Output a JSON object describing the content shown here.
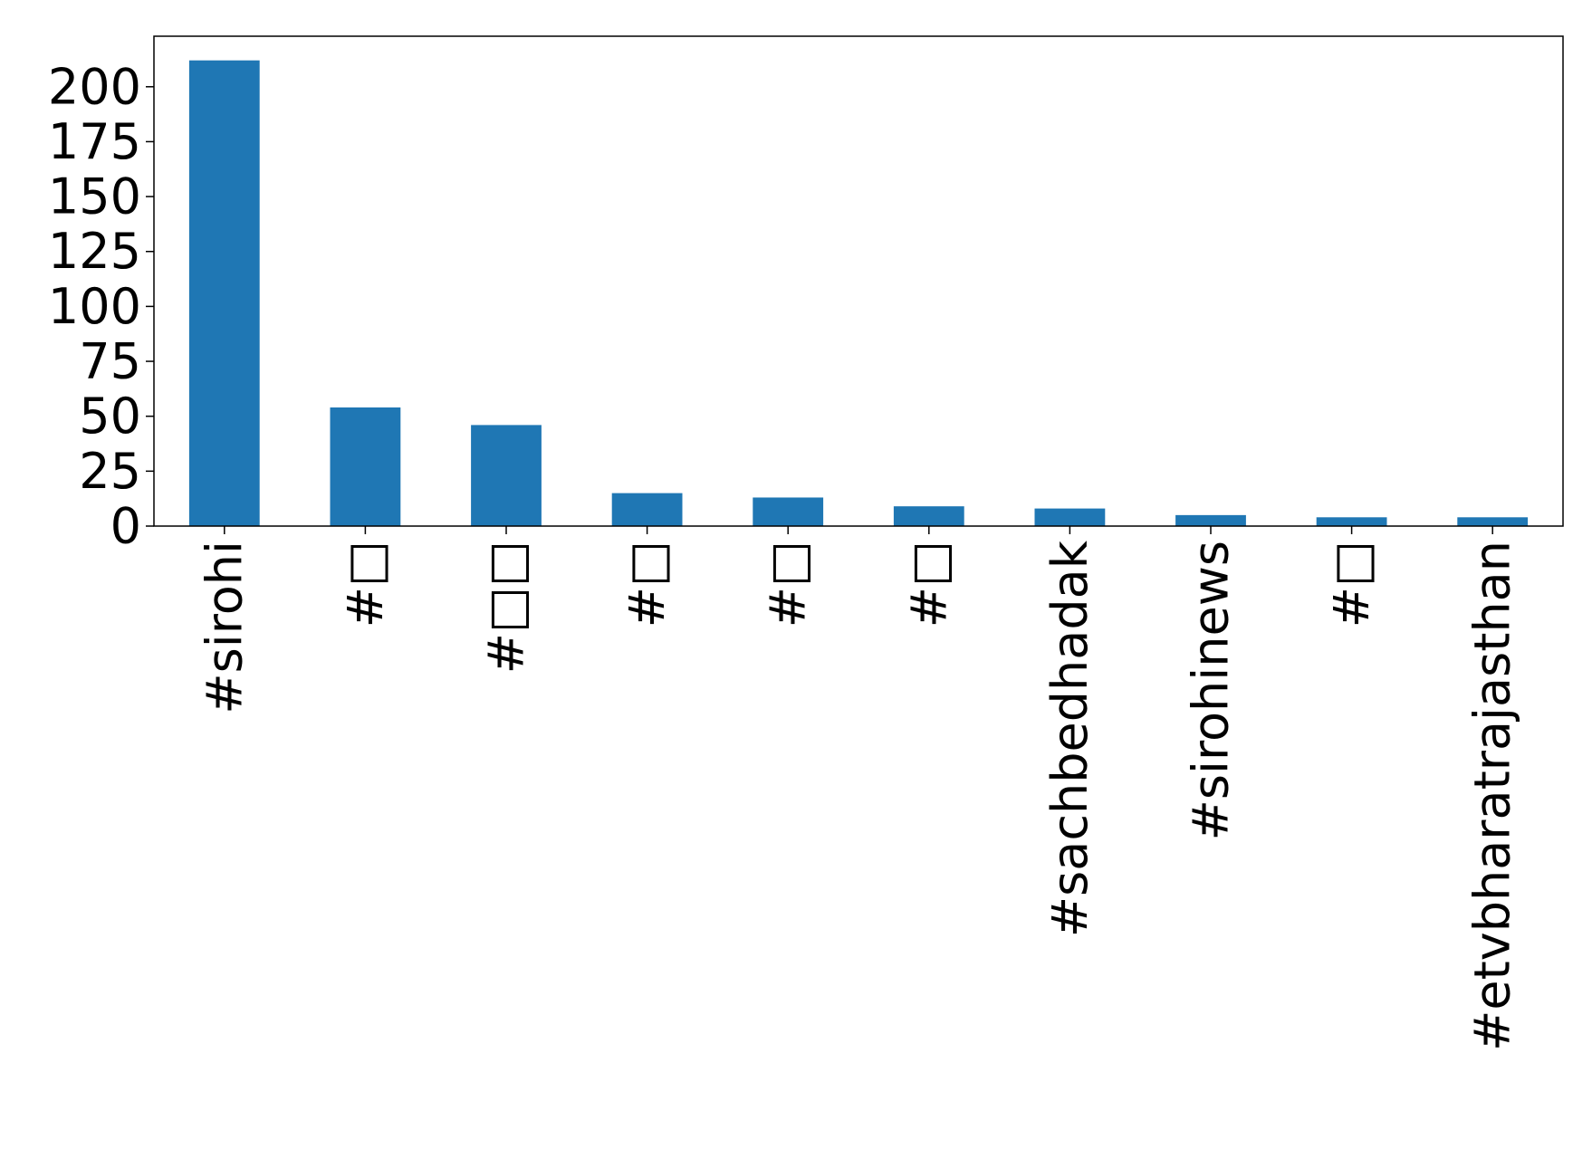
{
  "chart_data": {
    "type": "bar",
    "title": "",
    "xlabel": "",
    "ylabel": "",
    "categories": [
      "#sirohi",
      "#□",
      "#□□",
      "#□",
      "#□",
      "#□",
      "#sachbedhadak",
      "#sirohinews",
      "#□",
      "#etvbharatrajasthan"
    ],
    "values": [
      212,
      54,
      46,
      15,
      13,
      9,
      8,
      5,
      4,
      4
    ],
    "ylim": [
      0,
      223
    ],
    "yticks": [
      0,
      25,
      50,
      75,
      100,
      125,
      150,
      175,
      200
    ],
    "bar_color": "#1f77b4",
    "grid": false,
    "legend": "none"
  }
}
